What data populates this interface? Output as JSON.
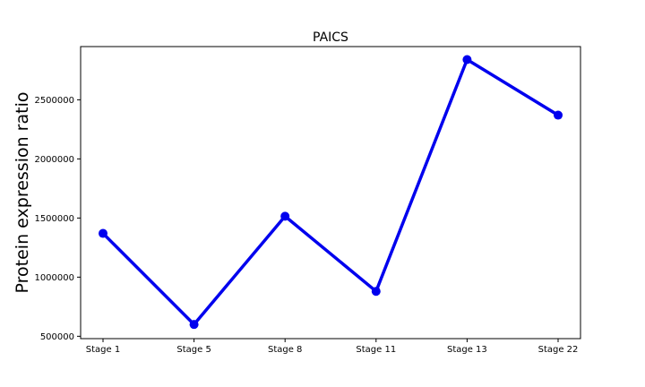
{
  "chart_data": {
    "type": "line",
    "title": "PAICS",
    "xlabel": "",
    "ylabel": "Protein expression ratio",
    "categories": [
      "Stage 1",
      "Stage 5",
      "Stage 8",
      "Stage 11",
      "Stage 13",
      "Stage 22"
    ],
    "series": [
      {
        "values": [
          1370000,
          600000,
          1515000,
          880000,
          2840000,
          2370000
        ],
        "color": "#0000ee"
      }
    ],
    "ylim": [
      480000,
      2950000
    ],
    "yticks": [
      500000,
      1000000,
      1500000,
      2000000,
      2500000
    ],
    "ytick_labels": [
      "500000",
      "1000000",
      "1500000",
      "2000000",
      "2500000"
    ],
    "grid": false,
    "legend": "none"
  }
}
